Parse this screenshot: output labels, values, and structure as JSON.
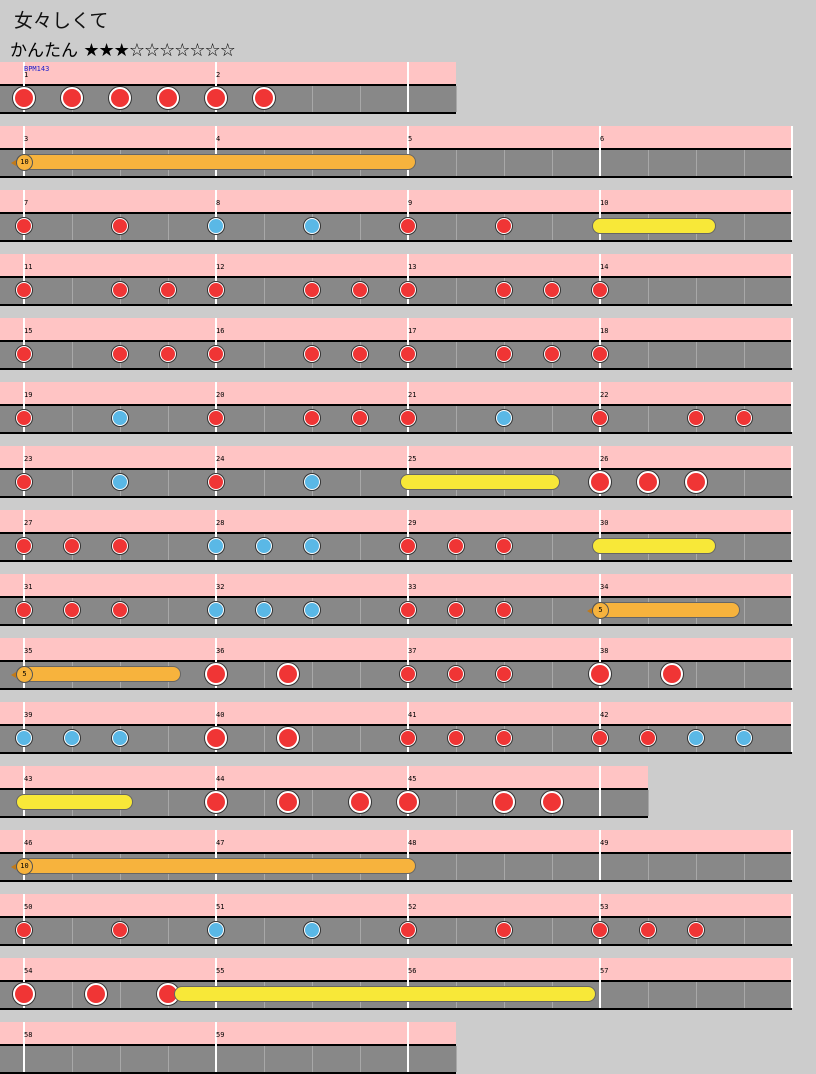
{
  "header": {
    "title": "女々しくて",
    "difficulty_label": "かんたん",
    "stars": "★★★☆☆☆☆☆☆☆",
    "star_rating": 3,
    "star_max": 10
  },
  "chart": {
    "bpm_label": "BPM143",
    "colors": {
      "don": "#f03535",
      "ka": "#5ab8e6",
      "roll": "#f8e838",
      "balloon": "#f7b33d",
      "lane": "#888888",
      "band": "#ffc4c4"
    },
    "rows": [
      {
        "measures": [
          "1",
          "2"
        ],
        "beats": 9,
        "bpm": true,
        "notes": [
          {
            "b": 0,
            "t": "D"
          },
          {
            "b": 1,
            "t": "D"
          },
          {
            "b": 2,
            "t": "D"
          },
          {
            "b": 3,
            "t": "D"
          },
          {
            "b": 4,
            "t": "D"
          },
          {
            "b": 5,
            "t": "D"
          }
        ]
      },
      {
        "measures": [
          "3",
          "4",
          "5",
          "6"
        ],
        "beats": 16,
        "notes": [
          {
            "b": 0,
            "t": "B",
            "end": 8,
            "count": "10"
          }
        ]
      },
      {
        "measures": [
          "7",
          "8",
          "9",
          "10"
        ],
        "beats": 16,
        "notes": [
          {
            "b": 0,
            "t": "d"
          },
          {
            "b": 2,
            "t": "d"
          },
          {
            "b": 4,
            "t": "k"
          },
          {
            "b": 6,
            "t": "k"
          },
          {
            "b": 8,
            "t": "d"
          },
          {
            "b": 10,
            "t": "d"
          },
          {
            "b": 12,
            "t": "R",
            "end": 14.25
          }
        ]
      },
      {
        "measures": [
          "11",
          "12",
          "13",
          "14"
        ],
        "beats": 16,
        "notes": [
          {
            "b": 0,
            "t": "d"
          },
          {
            "b": 2,
            "t": "d"
          },
          {
            "b": 3,
            "t": "d"
          },
          {
            "b": 4,
            "t": "d"
          },
          {
            "b": 6,
            "t": "d"
          },
          {
            "b": 7,
            "t": "d"
          },
          {
            "b": 8,
            "t": "d"
          },
          {
            "b": 10,
            "t": "d"
          },
          {
            "b": 11,
            "t": "d"
          },
          {
            "b": 12,
            "t": "d"
          }
        ]
      },
      {
        "measures": [
          "15",
          "16",
          "17",
          "18"
        ],
        "beats": 16,
        "notes": [
          {
            "b": 0,
            "t": "d"
          },
          {
            "b": 2,
            "t": "d"
          },
          {
            "b": 3,
            "t": "d"
          },
          {
            "b": 4,
            "t": "d"
          },
          {
            "b": 6,
            "t": "d"
          },
          {
            "b": 7,
            "t": "d"
          },
          {
            "b": 8,
            "t": "d"
          },
          {
            "b": 10,
            "t": "d"
          },
          {
            "b": 11,
            "t": "d"
          },
          {
            "b": 12,
            "t": "d"
          }
        ]
      },
      {
        "measures": [
          "19",
          "20",
          "21",
          "22"
        ],
        "beats": 16,
        "notes": [
          {
            "b": 0,
            "t": "d"
          },
          {
            "b": 2,
            "t": "k"
          },
          {
            "b": 4,
            "t": "d"
          },
          {
            "b": 6,
            "t": "d"
          },
          {
            "b": 7,
            "t": "d"
          },
          {
            "b": 8,
            "t": "d"
          },
          {
            "b": 10,
            "t": "k"
          },
          {
            "b": 12,
            "t": "d"
          },
          {
            "b": 14,
            "t": "d"
          },
          {
            "b": 15,
            "t": "d"
          }
        ]
      },
      {
        "measures": [
          "23",
          "24",
          "25",
          "26"
        ],
        "beats": 16,
        "notes": [
          {
            "b": 0,
            "t": "d"
          },
          {
            "b": 2,
            "t": "k"
          },
          {
            "b": 4,
            "t": "d"
          },
          {
            "b": 6,
            "t": "k"
          },
          {
            "b": 8,
            "t": "R",
            "end": 11
          },
          {
            "b": 12,
            "t": "D"
          },
          {
            "b": 13,
            "t": "D"
          },
          {
            "b": 14,
            "t": "D"
          }
        ]
      },
      {
        "measures": [
          "27",
          "28",
          "29",
          "30"
        ],
        "beats": 16,
        "notes": [
          {
            "b": 0,
            "t": "d"
          },
          {
            "b": 1,
            "t": "d"
          },
          {
            "b": 2,
            "t": "d"
          },
          {
            "b": 4,
            "t": "k"
          },
          {
            "b": 5,
            "t": "k"
          },
          {
            "b": 6,
            "t": "k"
          },
          {
            "b": 8,
            "t": "d"
          },
          {
            "b": 9,
            "t": "d"
          },
          {
            "b": 10,
            "t": "d"
          },
          {
            "b": 12,
            "t": "R",
            "end": 14.25
          }
        ]
      },
      {
        "measures": [
          "31",
          "32",
          "33",
          "34"
        ],
        "beats": 16,
        "notes": [
          {
            "b": 0,
            "t": "d"
          },
          {
            "b": 1,
            "t": "d"
          },
          {
            "b": 2,
            "t": "d"
          },
          {
            "b": 4,
            "t": "k"
          },
          {
            "b": 5,
            "t": "k"
          },
          {
            "b": 6,
            "t": "k"
          },
          {
            "b": 8,
            "t": "d"
          },
          {
            "b": 9,
            "t": "d"
          },
          {
            "b": 10,
            "t": "d"
          },
          {
            "b": 12,
            "t": "B",
            "end": 14.75,
            "count": "5"
          }
        ]
      },
      {
        "measures": [
          "35",
          "36",
          "37",
          "38"
        ],
        "beats": 16,
        "notes": [
          {
            "b": 0,
            "t": "B",
            "end": 3.1,
            "count": "5"
          },
          {
            "b": 4,
            "t": "D"
          },
          {
            "b": 5.5,
            "t": "D"
          },
          {
            "b": 8,
            "t": "d"
          },
          {
            "b": 9,
            "t": "d"
          },
          {
            "b": 10,
            "t": "d"
          },
          {
            "b": 12,
            "t": "D"
          },
          {
            "b": 13.5,
            "t": "D"
          }
        ]
      },
      {
        "measures": [
          "39",
          "40",
          "41",
          "42"
        ],
        "beats": 16,
        "notes": [
          {
            "b": 0,
            "t": "k"
          },
          {
            "b": 1,
            "t": "k"
          },
          {
            "b": 2,
            "t": "k"
          },
          {
            "b": 4,
            "t": "D"
          },
          {
            "b": 5.5,
            "t": "D"
          },
          {
            "b": 8,
            "t": "d"
          },
          {
            "b": 9,
            "t": "d"
          },
          {
            "b": 10,
            "t": "d"
          },
          {
            "b": 12,
            "t": "d"
          },
          {
            "b": 13,
            "t": "d"
          },
          {
            "b": 14,
            "t": "k"
          },
          {
            "b": 15,
            "t": "k"
          }
        ]
      },
      {
        "measures": [
          "43",
          "44",
          "45"
        ],
        "beats": 13,
        "notes": [
          {
            "b": 0,
            "t": "R",
            "end": 2.1
          },
          {
            "b": 4,
            "t": "D"
          },
          {
            "b": 5.5,
            "t": "D"
          },
          {
            "b": 7,
            "t": "D"
          },
          {
            "b": 8,
            "t": "D"
          },
          {
            "b": 10,
            "t": "D"
          },
          {
            "b": 11,
            "t": "D"
          }
        ]
      },
      {
        "measures": [
          "46",
          "47",
          "48",
          "49"
        ],
        "beats": 16,
        "notes": [
          {
            "b": 0,
            "t": "B",
            "end": 8,
            "count": "10"
          }
        ]
      },
      {
        "measures": [
          "50",
          "51",
          "52",
          "53"
        ],
        "beats": 16,
        "notes": [
          {
            "b": 0,
            "t": "d"
          },
          {
            "b": 2,
            "t": "d"
          },
          {
            "b": 4,
            "t": "k"
          },
          {
            "b": 6,
            "t": "k"
          },
          {
            "b": 8,
            "t": "d"
          },
          {
            "b": 10,
            "t": "d"
          },
          {
            "b": 12,
            "t": "d"
          },
          {
            "b": 13,
            "t": "d"
          },
          {
            "b": 14,
            "t": "d"
          }
        ]
      },
      {
        "measures": [
          "54",
          "55",
          "56",
          "57"
        ],
        "beats": 16,
        "notes": [
          {
            "b": 0,
            "t": "D"
          },
          {
            "b": 1.5,
            "t": "D"
          },
          {
            "b": 3,
            "t": "D"
          },
          {
            "b": 3.3,
            "t": "R",
            "end": 11.75
          }
        ]
      },
      {
        "measures": [
          "58",
          "59"
        ],
        "beats": 9,
        "notes": []
      }
    ]
  }
}
